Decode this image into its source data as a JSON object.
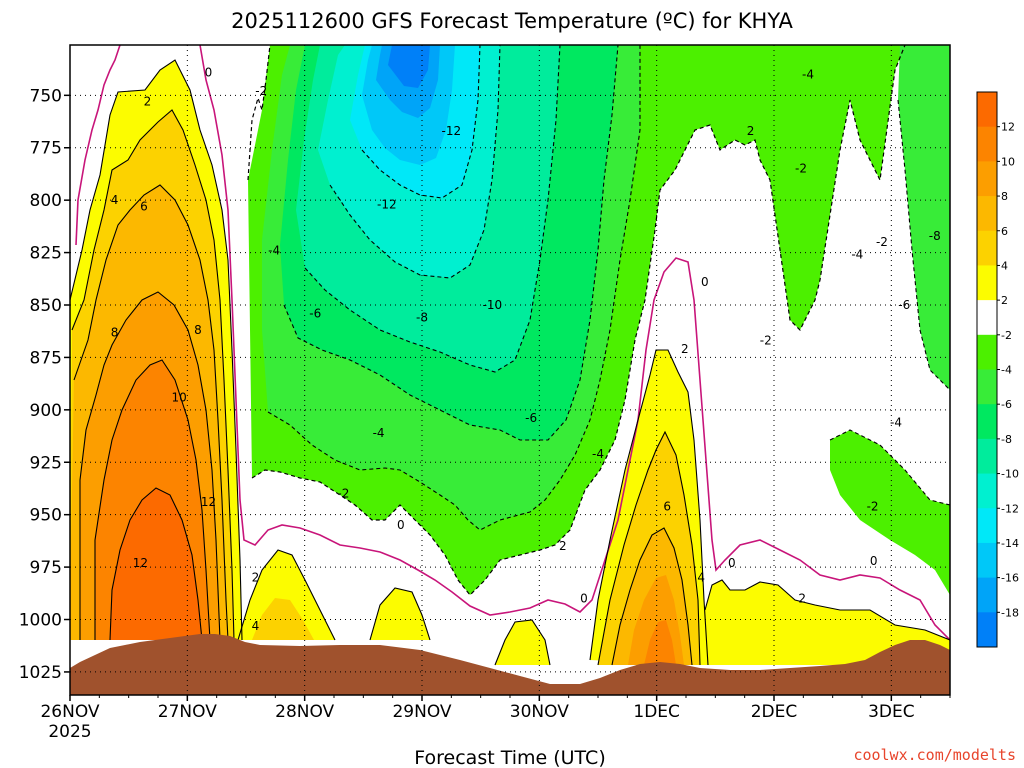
{
  "chart_data": {
    "type": "heatmap",
    "title": "2025112600 GFS Forecast Temperature (ºC) for KHYA",
    "xlabel": "Forecast Time (UTC)",
    "ylabel": "",
    "credit": "coolwx.com/modelts",
    "x_ticks": [
      "26NOV",
      "27NOV",
      "28NOV",
      "29NOV",
      "30NOV",
      "1DEC",
      "2DEC",
      "3DEC"
    ],
    "x_ticks_sub": [
      "2025",
      "",
      "",
      "",
      "",
      "",
      "",
      ""
    ],
    "x_range_days": [
      0,
      7.5
    ],
    "y_ticks": [
      750,
      775,
      800,
      825,
      850,
      875,
      900,
      925,
      950,
      975,
      1000,
      1025
    ],
    "y_range_hpa": [
      726,
      1036
    ],
    "colorbar": {
      "labels": [
        "12",
        "10",
        "8",
        "6",
        "4",
        "2",
        "-2",
        "-4",
        "-6",
        "-8",
        "-10",
        "-12",
        "-14",
        "-16",
        "-18"
      ],
      "bands": [
        {
          "lo": 12,
          "hi": 14,
          "color": "#fc6a00"
        },
        {
          "lo": 10,
          "hi": 12,
          "color": "#fc8400"
        },
        {
          "lo": 8,
          "hi": 10,
          "color": "#fc9e00"
        },
        {
          "lo": 6,
          "hi": 8,
          "color": "#fcb800"
        },
        {
          "lo": 4,
          "hi": 6,
          "color": "#fcd200"
        },
        {
          "lo": 2,
          "hi": 4,
          "color": "#fcfc00"
        },
        {
          "lo": -2,
          "hi": 2,
          "color": "#ffffff"
        },
        {
          "lo": -4,
          "hi": -2,
          "color": "#4cf000"
        },
        {
          "lo": -6,
          "hi": -4,
          "color": "#38ec38"
        },
        {
          "lo": -8,
          "hi": -6,
          "color": "#00e860"
        },
        {
          "lo": -10,
          "hi": -8,
          "color": "#00ec9c"
        },
        {
          "lo": -12,
          "hi": -10,
          "color": "#00f0d0"
        },
        {
          "lo": -14,
          "hi": -12,
          "color": "#00e8f8"
        },
        {
          "lo": -16,
          "hi": -14,
          "color": "#00c8f8"
        },
        {
          "lo": -18,
          "hi": -16,
          "color": "#00a4f8"
        },
        {
          "lo": -20,
          "hi": -18,
          "color": "#0080f8"
        }
      ]
    },
    "ground_color": "#a0522d",
    "zero_line_color": "#c8157a",
    "grid": "dotted",
    "contour_labels": [
      {
        "text": "0",
        "day": 1.18,
        "hpa": 739
      },
      {
        "text": "-2",
        "day": 1.63,
        "hpa": 748
      },
      {
        "text": "2",
        "day": 0.66,
        "hpa": 753
      },
      {
        "text": "-12",
        "day": 3.25,
        "hpa": 767
      },
      {
        "text": "-4",
        "day": 6.29,
        "hpa": 740
      },
      {
        "text": "2",
        "day": 5.8,
        "hpa": 767
      },
      {
        "text": "-2",
        "day": 6.23,
        "hpa": 785
      },
      {
        "text": "-12",
        "day": 2.7,
        "hpa": 802
      },
      {
        "text": "4",
        "day": 0.38,
        "hpa": 800
      },
      {
        "text": "6",
        "day": 0.63,
        "hpa": 803
      },
      {
        "text": "-8",
        "day": 7.37,
        "hpa": 817
      },
      {
        "text": "-2",
        "day": 6.92,
        "hpa": 820
      },
      {
        "text": "-4",
        "day": 1.74,
        "hpa": 824
      },
      {
        "text": "-10",
        "day": 3.6,
        "hpa": 850
      },
      {
        "text": "-4",
        "day": 6.71,
        "hpa": 826
      },
      {
        "text": "0",
        "day": 5.41,
        "hpa": 839
      },
      {
        "text": "-6",
        "day": 2.09,
        "hpa": 854
      },
      {
        "text": "-8",
        "day": 3.0,
        "hpa": 856
      },
      {
        "text": "8",
        "day": 0.38,
        "hpa": 863
      },
      {
        "text": "8",
        "day": 1.09,
        "hpa": 862
      },
      {
        "text": "-6",
        "day": 7.11,
        "hpa": 850
      },
      {
        "text": "-2",
        "day": 5.93,
        "hpa": 867
      },
      {
        "text": "2",
        "day": 5.24,
        "hpa": 871
      },
      {
        "text": "10",
        "day": 0.93,
        "hpa": 894
      },
      {
        "text": "-6",
        "day": 3.93,
        "hpa": 904
      },
      {
        "text": "-4",
        "day": 7.04,
        "hpa": 906
      },
      {
        "text": "-4",
        "day": 2.63,
        "hpa": 911
      },
      {
        "text": "-4",
        "day": 4.5,
        "hpa": 921
      },
      {
        "text": "-2",
        "day": 2.33,
        "hpa": 940
      },
      {
        "text": "12",
        "day": 1.18,
        "hpa": 944
      },
      {
        "text": "6",
        "day": 5.09,
        "hpa": 946
      },
      {
        "text": "-2",
        "day": 6.84,
        "hpa": 946
      },
      {
        "text": "0",
        "day": 2.82,
        "hpa": 955
      },
      {
        "text": "2",
        "day": 4.2,
        "hpa": 965
      },
      {
        "text": "0",
        "day": 5.64,
        "hpa": 973
      },
      {
        "text": "0",
        "day": 6.85,
        "hpa": 972
      },
      {
        "text": "12",
        "day": 0.6,
        "hpa": 973
      },
      {
        "text": "2",
        "day": 1.58,
        "hpa": 980
      },
      {
        "text": "4",
        "day": 5.38,
        "hpa": 980
      },
      {
        "text": "0",
        "day": 4.38,
        "hpa": 990
      },
      {
        "text": "2",
        "day": 6.24,
        "hpa": 990
      },
      {
        "text": "4",
        "day": 1.58,
        "hpa": 1003
      }
    ]
  }
}
